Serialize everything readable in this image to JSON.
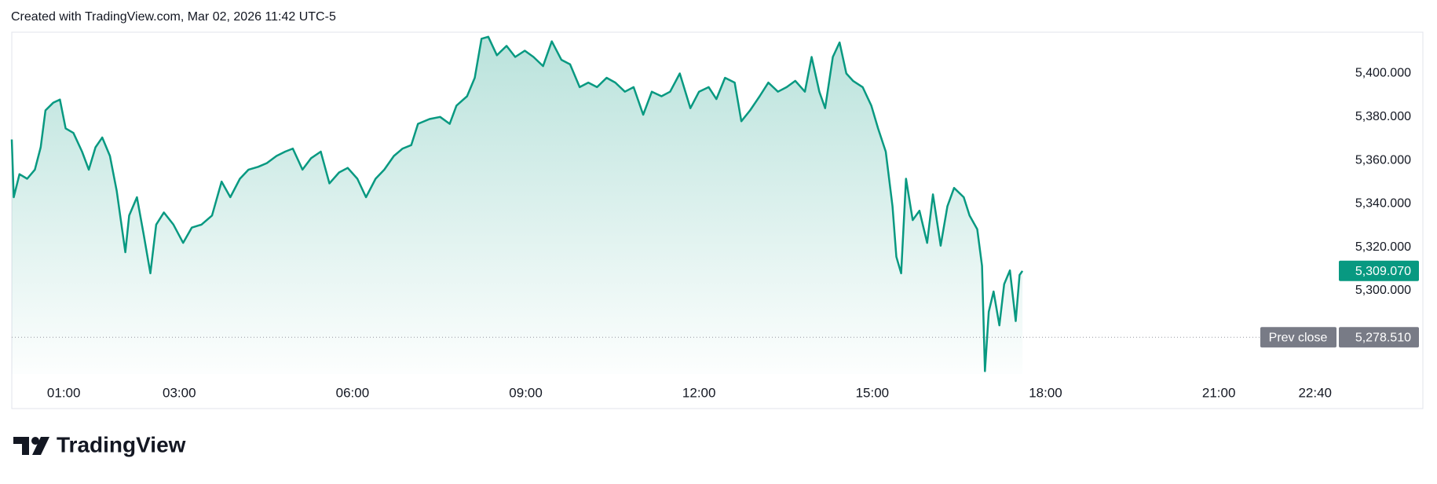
{
  "header": "Created with TradingView.com, Mar 02, 2026 11:42 UTC-5",
  "brand": "TradingView",
  "chart_data": {
    "type": "line",
    "color": "#089981",
    "x": [
      "00:06",
      "00:08",
      "00:14",
      "00:22",
      "00:30",
      "00:36",
      "00:41",
      "00:49",
      "00:56",
      "01:02",
      "01:10",
      "01:19",
      "01:26",
      "01:33",
      "01:40",
      "01:48",
      "01:55",
      "02:04",
      "02:08",
      "02:16",
      "02:23",
      "02:30",
      "02:36",
      "02:44",
      "02:54",
      "03:04",
      "03:13",
      "03:23",
      "03:34",
      "03:44",
      "03:53",
      "04:03",
      "04:12",
      "04:22",
      "04:31",
      "04:41",
      "04:50",
      "04:58",
      "05:08",
      "05:17",
      "05:27",
      "05:36",
      "05:46",
      "05:55",
      "06:05",
      "06:14",
      "06:24",
      "06:33",
      "06:43",
      "06:52",
      "07:01",
      "07:08",
      "07:20",
      "07:31",
      "07:41",
      "07:48",
      "07:59",
      "08:07",
      "08:14",
      "08:21",
      "08:30",
      "08:40",
      "08:49",
      "08:59",
      "09:08",
      "09:18",
      "09:27",
      "09:37",
      "09:46",
      "09:56",
      "10:05",
      "10:14",
      "10:24",
      "10:33",
      "10:43",
      "10:52",
      "11:02",
      "11:11",
      "11:21",
      "11:30",
      "11:40",
      "11:51",
      "12:00",
      "12:10",
      "12:18",
      "12:27",
      "12:37",
      "12:44",
      "12:53",
      "13:03",
      "13:12",
      "13:22",
      "13:31",
      "13:40",
      "13:50",
      "13:57",
      "14:05",
      "14:11",
      "14:19",
      "14:26",
      "14:33",
      "14:40",
      "14:50",
      "14:59",
      "15:06",
      "15:14",
      "15:21",
      "15:25",
      "15:30",
      "15:35",
      "15:42",
      "15:49",
      "15:57",
      "16:03",
      "16:11",
      "16:18",
      "16:25",
      "16:35",
      "16:41",
      "16:49",
      "16:54",
      "16:57",
      "17:01",
      "17:06",
      "17:12",
      "17:17",
      "17:23",
      "17:29",
      "17:33",
      "17:36"
    ],
    "values": [
      5369.6,
      5343,
      5353.6,
      5351.5,
      5355.7,
      5366,
      5383,
      5386.5,
      5388,
      5374.7,
      5372.6,
      5364,
      5355.7,
      5366,
      5370.5,
      5362,
      5346,
      5317.7,
      5334.6,
      5343,
      5326,
      5308,
      5330.4,
      5336,
      5330.4,
      5322,
      5329,
      5330.4,
      5334.6,
      5350.2,
      5343,
      5351.5,
      5355.7,
      5357,
      5358.7,
      5362,
      5364,
      5365.4,
      5355.7,
      5361,
      5364,
      5349.4,
      5354.4,
      5356.5,
      5351.5,
      5343,
      5351.5,
      5355.7,
      5362,
      5365.4,
      5367,
      5376.8,
      5379,
      5380,
      5376.8,
      5385.2,
      5389.5,
      5398,
      5416,
      5416.9,
      5408.4,
      5412.7,
      5407.6,
      5410.5,
      5407.6,
      5403.4,
      5414.8,
      5406.3,
      5404.2,
      5393.7,
      5395.8,
      5393.7,
      5398,
      5395.8,
      5391.6,
      5393.7,
      5381,
      5391.6,
      5389.5,
      5391.6,
      5400,
      5384,
      5391.6,
      5393.7,
      5388.2,
      5398,
      5395.8,
      5378,
      5383,
      5389.5,
      5395.8,
      5391.6,
      5393.7,
      5396.6,
      5391.6,
      5407.6,
      5391.6,
      5384,
      5407.6,
      5414.3,
      5400,
      5396.6,
      5393.7,
      5385.2,
      5374.7,
      5364,
      5338.8,
      5315.6,
      5308,
      5351.5,
      5332.5,
      5336.8,
      5322,
      5344.3,
      5320.7,
      5338.8,
      5347.3,
      5343,
      5334.6,
      5328.3,
      5311.4,
      5262.9,
      5290.3,
      5299.6,
      5284,
      5303,
      5309.3,
      5286,
      5307.2,
      5309.07
    ],
    "xlim": [
      "00:06",
      "24:32"
    ],
    "xticks": [
      "01:00",
      "03:00",
      "06:00",
      "09:00",
      "12:00",
      "15:00",
      "18:00",
      "21:00",
      "22:40"
    ],
    "ylim": [
      5261.6,
      5419.0
    ],
    "yticks": [
      {
        "value": 5300,
        "label": "5,300.000"
      },
      {
        "value": 5320,
        "label": "5,320.000"
      },
      {
        "value": 5340,
        "label": "5,340.000"
      },
      {
        "value": 5360,
        "label": "5,360.000"
      },
      {
        "value": 5380,
        "label": "5,380.000"
      },
      {
        "value": 5400,
        "label": "5,400.000"
      }
    ],
    "last_price": {
      "value": 5309.07,
      "label": "5,309.070"
    },
    "prev_close": {
      "name": "Prev close",
      "value": 5278.51,
      "label": "5,278.510"
    }
  }
}
